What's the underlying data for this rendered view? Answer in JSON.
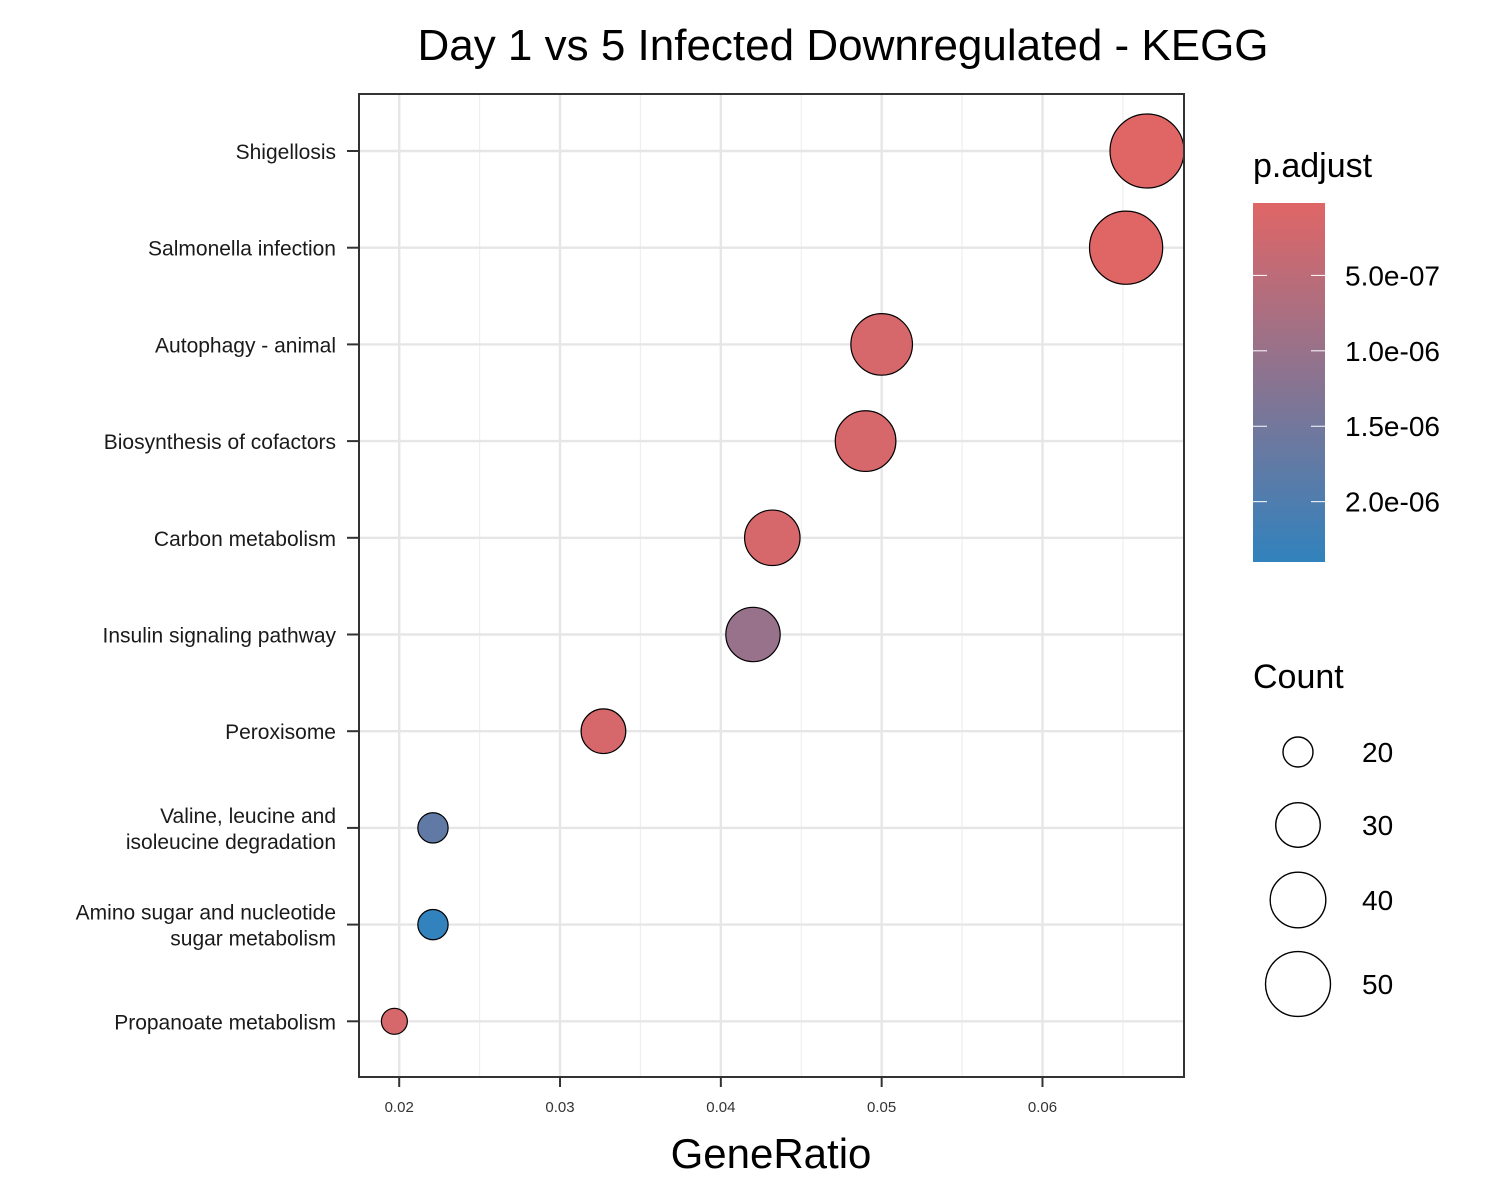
{
  "chart_data": {
    "type": "scatter",
    "title": "Day 1 vs 5 Infected Downregulated - KEGG",
    "xlabel": "GeneRatio",
    "ylabel": "",
    "xlim": [
      0.0175,
      0.0688
    ],
    "x_ticks": [
      "0.02",
      "0.03",
      "0.04",
      "0.05",
      "0.06"
    ],
    "grid": true,
    "categories": [
      "Shigellosis",
      "Salmonella infection",
      "Autophagy - animal",
      "Biosynthesis of cofactors",
      "Carbon metabolism",
      "Insulin signaling pathway",
      "Peroxisome",
      "Valine, leucine and\nisoleucine degradation",
      "Amino sugar and nucleotide\nsugar metabolism",
      "Propanoate metabolism"
    ],
    "points": [
      {
        "term": "Shigellosis",
        "gene_ratio": 0.0665,
        "count": 56,
        "p_adjust": 2e-08
      },
      {
        "term": "Salmonella infection",
        "gene_ratio": 0.0652,
        "count": 55,
        "p_adjust": 2e-08
      },
      {
        "term": "Autophagy - animal",
        "gene_ratio": 0.05,
        "count": 42,
        "p_adjust": 1.5e-07
      },
      {
        "term": "Biosynthesis of cofactors",
        "gene_ratio": 0.049,
        "count": 41,
        "p_adjust": 1.5e-07
      },
      {
        "term": "Carbon metabolism",
        "gene_ratio": 0.0432,
        "count": 36,
        "p_adjust": 1.5e-07
      },
      {
        "term": "Insulin signaling pathway",
        "gene_ratio": 0.042,
        "count": 35,
        "p_adjust": 1e-06
      },
      {
        "term": "Peroxisome",
        "gene_ratio": 0.0327,
        "count": 27,
        "p_adjust": 1.5e-07
      },
      {
        "term": "Valine, leucine and\nisoleucine degradation",
        "gene_ratio": 0.0221,
        "count": 18,
        "p_adjust": 1.75e-06
      },
      {
        "term": "Amino sugar and nucleotide\nsugar metabolism",
        "gene_ratio": 0.0221,
        "count": 18,
        "p_adjust": 2.4e-06
      },
      {
        "term": "Propanoate metabolism",
        "gene_ratio": 0.0197,
        "count": 16,
        "p_adjust": 1.5e-07
      }
    ],
    "color_scale": {
      "name": "p.adjust",
      "low_color": "#E06666",
      "high_color": "#3182BD",
      "range": [
        2e-08,
        2.4e-06
      ],
      "breaks": [
        5e-07,
        1e-06,
        1.5e-06,
        2e-06
      ],
      "break_labels": [
        "5.0e-07",
        "1.0e-06",
        "1.5e-06",
        "2.0e-06"
      ]
    },
    "size_scale": {
      "name": "Count",
      "breaks": [
        20,
        30,
        40,
        50
      ],
      "break_labels": [
        "20",
        "30",
        "40",
        "50"
      ],
      "range": [
        16,
        56
      ]
    },
    "legend_position": "right"
  }
}
